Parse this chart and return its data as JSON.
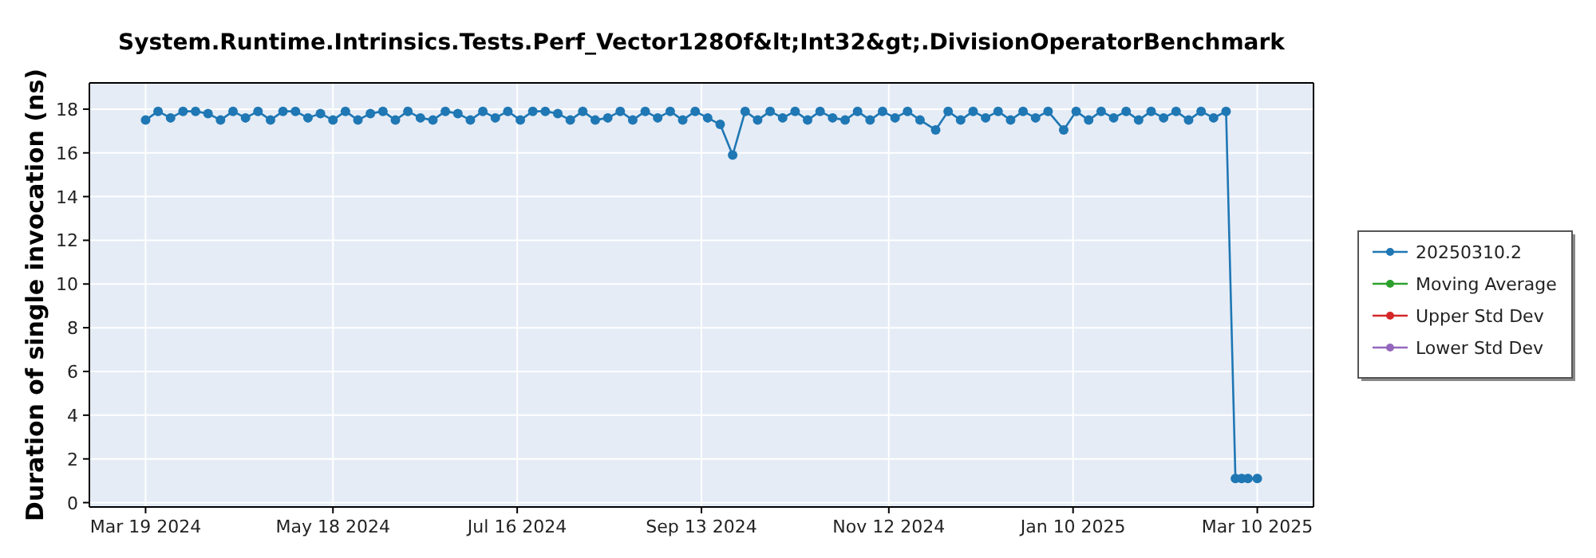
{
  "chart_data": {
    "type": "line",
    "title": "System.Runtime.Intrinsics.Tests.Perf_Vector128Of&lt;Int32&gt;.DivisionOperatorBenchmark",
    "ylabel": "Duration of single invocation (ns)",
    "xlim": [
      "2024-03-01",
      "2025-03-28"
    ],
    "xticks": [
      {
        "value": "2024-03-19",
        "label": "Mar 19 2024"
      },
      {
        "value": "2024-05-18",
        "label": "May 18 2024"
      },
      {
        "value": "2024-07-16",
        "label": "Jul 16 2024"
      },
      {
        "value": "2024-09-13",
        "label": "Sep 13 2024"
      },
      {
        "value": "2024-11-12",
        "label": "Nov 12 2024"
      },
      {
        "value": "2025-01-10",
        "label": "Jan 10 2025"
      },
      {
        "value": "2025-03-10",
        "label": "Mar 10 2025"
      }
    ],
    "ylim": [
      -0.2,
      19.2
    ],
    "yticks": [
      0,
      2,
      4,
      6,
      8,
      10,
      12,
      14,
      16,
      18
    ],
    "grid": true,
    "legend": "right",
    "marker": "circle",
    "line_style": "solid",
    "series": [
      {
        "name": "20250310.2",
        "color": "#1f77b4",
        "x": [
          "2024-03-19",
          "2024-03-23",
          "2024-03-27",
          "2024-03-31",
          "2024-04-04",
          "2024-04-08",
          "2024-04-12",
          "2024-04-16",
          "2024-04-20",
          "2024-04-24",
          "2024-04-28",
          "2024-05-02",
          "2024-05-06",
          "2024-05-10",
          "2024-05-14",
          "2024-05-18",
          "2024-05-22",
          "2024-05-26",
          "2024-05-30",
          "2024-06-03",
          "2024-06-07",
          "2024-06-11",
          "2024-06-15",
          "2024-06-19",
          "2024-06-23",
          "2024-06-27",
          "2024-07-01",
          "2024-07-05",
          "2024-07-09",
          "2024-07-13",
          "2024-07-17",
          "2024-07-21",
          "2024-07-25",
          "2024-07-29",
          "2024-08-02",
          "2024-08-06",
          "2024-08-10",
          "2024-08-14",
          "2024-08-18",
          "2024-08-22",
          "2024-08-26",
          "2024-08-30",
          "2024-09-03",
          "2024-09-07",
          "2024-09-11",
          "2024-09-15",
          "2024-09-19",
          "2024-09-23",
          "2024-09-27",
          "2024-10-01",
          "2024-10-05",
          "2024-10-09",
          "2024-10-13",
          "2024-10-17",
          "2024-10-21",
          "2024-10-25",
          "2024-10-29",
          "2024-11-02",
          "2024-11-06",
          "2024-11-10",
          "2024-11-14",
          "2024-11-18",
          "2024-11-22",
          "2024-11-27",
          "2024-12-01",
          "2024-12-05",
          "2024-12-09",
          "2024-12-13",
          "2024-12-17",
          "2024-12-21",
          "2024-12-25",
          "2024-12-29",
          "2025-01-02",
          "2025-01-07",
          "2025-01-11",
          "2025-01-15",
          "2025-01-19",
          "2025-01-23",
          "2025-01-27",
          "2025-01-31",
          "2025-02-04",
          "2025-02-08",
          "2025-02-12",
          "2025-02-16",
          "2025-02-20",
          "2025-02-24",
          "2025-02-28",
          "2025-03-03",
          "2025-03-05",
          "2025-03-07",
          "2025-03-10"
        ],
        "values": [
          17.5,
          17.9,
          17.6,
          17.9,
          17.9,
          17.8,
          17.5,
          17.9,
          17.6,
          17.9,
          17.5,
          17.9,
          17.9,
          17.6,
          17.8,
          17.5,
          17.9,
          17.5,
          17.8,
          17.9,
          17.5,
          17.9,
          17.6,
          17.5,
          17.9,
          17.8,
          17.5,
          17.9,
          17.6,
          17.9,
          17.5,
          17.9,
          17.9,
          17.8,
          17.5,
          17.9,
          17.5,
          17.6,
          17.9,
          17.5,
          17.9,
          17.6,
          17.9,
          17.5,
          17.9,
          17.6,
          17.3,
          15.9,
          17.9,
          17.5,
          17.9,
          17.6,
          17.9,
          17.5,
          17.9,
          17.6,
          17.5,
          17.9,
          17.5,
          17.9,
          17.6,
          17.9,
          17.5,
          17.05,
          17.9,
          17.5,
          17.9,
          17.6,
          17.9,
          17.5,
          17.9,
          17.6,
          17.9,
          17.05,
          17.9,
          17.5,
          17.9,
          17.6,
          17.9,
          17.5,
          17.9,
          17.6,
          17.9,
          17.5,
          17.9,
          17.6,
          17.9,
          1.1,
          1.1,
          1.1,
          1.1
        ]
      },
      {
        "name": "Moving Average",
        "color": "#2ca02c"
      },
      {
        "name": "Upper Std Dev",
        "color": "#d62728"
      },
      {
        "name": "Lower Std Dev",
        "color": "#9467bd"
      }
    ]
  }
}
